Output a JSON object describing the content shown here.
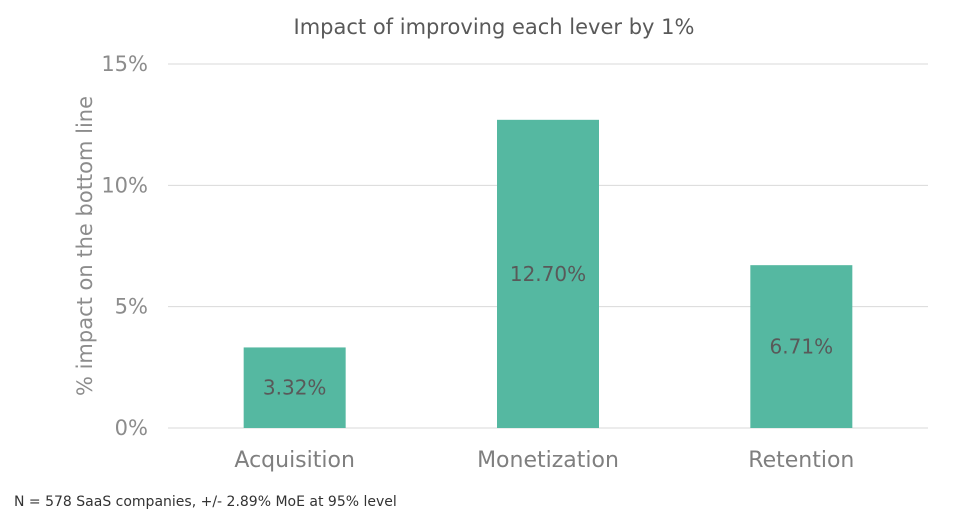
{
  "chart_data": {
    "type": "bar",
    "title": "Impact of improving each lever by 1%",
    "xlabel": "",
    "ylabel": "% impact on the bottom line",
    "categories": [
      "Acquisition",
      "Monetization",
      "Retention"
    ],
    "values": [
      3.32,
      12.7,
      6.71
    ],
    "data_labels": [
      "3.32%",
      "12.70%",
      "6.71%"
    ],
    "ylim": [
      0,
      15
    ],
    "yticks": [
      0,
      5,
      10,
      15
    ],
    "ytick_labels": [
      "0%",
      "5%",
      "10%",
      "15%"
    ],
    "grid": true,
    "legend": "none",
    "bar_color": "#55b8a1",
    "gridline_color": "#d9d9d9"
  },
  "footnote": "N = 578 SaaS companies, +/- 2.89% MoE at 95% level"
}
